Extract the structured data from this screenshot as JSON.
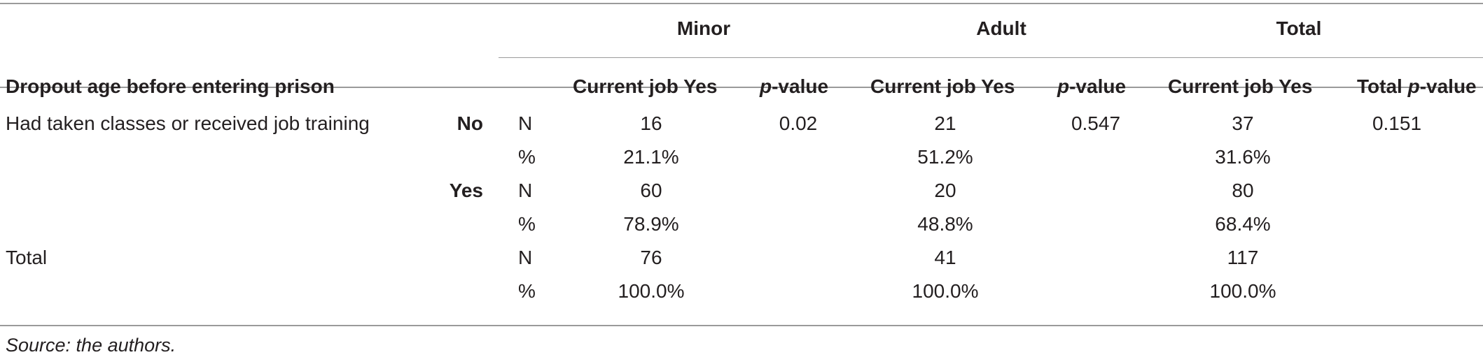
{
  "table": {
    "groups": {
      "minor": "Minor",
      "adult": "Adult",
      "total": "Total"
    },
    "row_header": "Dropout age before entering prison",
    "subheaders": {
      "job_minor": "Current job Yes",
      "p_prefix": "p",
      "p_suffix": "-value",
      "job_adult": "Current job Yes",
      "job_total": "Current job Yes",
      "total_p_prefix": "Total ",
      "total_p_italic": "p",
      "total_p_suffix": "-value"
    },
    "rows": [
      {
        "category": "Had taken classes or received job training",
        "group": "No",
        "stat": "N",
        "minor": "16",
        "p_minor": "0.02",
        "adult": "21",
        "p_adult": "0.547",
        "total": "37",
        "p_total": "0.151"
      },
      {
        "category": "",
        "group": "",
        "stat": "%",
        "minor": "21.1%",
        "p_minor": "",
        "adult": "51.2%",
        "p_adult": "",
        "total": "31.6%",
        "p_total": ""
      },
      {
        "category": "",
        "group": "Yes",
        "stat": "N",
        "minor": "60",
        "p_minor": "",
        "adult": "20",
        "p_adult": "",
        "total": "80",
        "p_total": ""
      },
      {
        "category": "",
        "group": "",
        "stat": "%",
        "minor": "78.9%",
        "p_minor": "",
        "adult": "48.8%",
        "p_adult": "",
        "total": "68.4%",
        "p_total": ""
      },
      {
        "category": "Total",
        "group": "",
        "stat": "N",
        "minor": "76",
        "p_minor": "",
        "adult": "41",
        "p_adult": "",
        "total": "117",
        "p_total": ""
      },
      {
        "category": "",
        "group": "",
        "stat": "%",
        "minor": "100.0%",
        "p_minor": "",
        "adult": "100.0%",
        "p_adult": "",
        "total": "100.0%",
        "p_total": ""
      }
    ],
    "source": "Source: the authors."
  }
}
